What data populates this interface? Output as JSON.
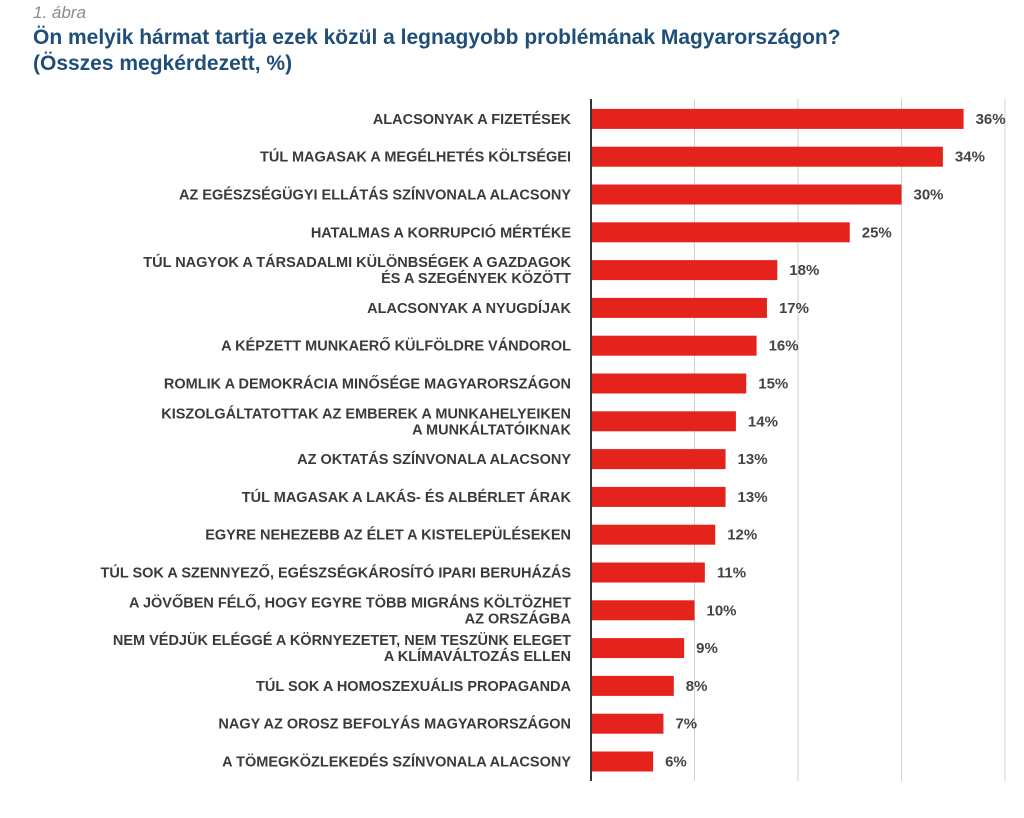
{
  "figure_label": "1. ábra",
  "title_line1": "Ön melyik hármat tartja ezek közül a legnagyobb problémának Magyarországon?",
  "title_line2": "(Összes megkérdezett, %)",
  "colors": {
    "bar": "#e3231c",
    "title": "#1f4e79",
    "grid": "#d0d0d0",
    "axis": "#333333"
  },
  "chart_data": {
    "type": "bar",
    "orientation": "horizontal",
    "title": "Ön melyik hármat tartja ezek közül a legnagyobb problémának Magyarországon? (Összes megkérdezett, %)",
    "categories": [
      [
        "ALACSONYAK A FIZETÉSEK"
      ],
      [
        "TÚL MAGASAK A MEGÉLHETÉS KÖLTSÉGEI"
      ],
      [
        "AZ EGÉSZSÉGÜGYI ELLÁTÁS SZÍNVONALA ALACSONY"
      ],
      [
        "HATALMAS A KORRUPCIÓ MÉRTÉKE"
      ],
      [
        "TÚL NAGYOK A TÁRSADALMI KÜLÖNBSÉGEK A GAZDAGOK",
        "ÉS A SZEGÉNYEK KÖZÖTT"
      ],
      [
        "ALACSONYAK A NYUGDÍJAK"
      ],
      [
        "A KÉPZETT MUNKAERŐ KÜLFÖLDRE VÁNDOROL"
      ],
      [
        "ROMLIK A DEMOKRÁCIA MINŐSÉGE MAGYARORSZÁGON"
      ],
      [
        "KISZOLGÁLTATOTTAK AZ EMBEREK A MUNKAHELYEIKEN",
        "A MUNKÁLTATÓIKNAK"
      ],
      [
        "AZ OKTATÁS SZÍNVONALA ALACSONY"
      ],
      [
        "TÚL MAGASAK A LAKÁS- ÉS ALBÉRLET ÁRAK"
      ],
      [
        "EGYRE NEHEZEBB AZ ÉLET A KISTELEPÜLÉSEKEN"
      ],
      [
        "TÚL SOK A SZENNYEZŐ, EGÉSZSÉGKÁROSÍTÓ IPARI BERUHÁZÁS"
      ],
      [
        "A JÖVŐBEN FÉLŐ, HOGY EGYRE TÖBB MIGRÁNS KÖLTÖZHET",
        "AZ ORSZÁGBA"
      ],
      [
        "NEM VÉDJÜK ELÉGGÉ A KÖRNYEZETET, NEM TESZÜNK ELEGET",
        "A KLÍMAVÁLTOZÁS ELLEN"
      ],
      [
        "TÚL SOK A HOMOSZEXUÁLIS PROPAGANDA"
      ],
      [
        "NAGY AZ OROSZ BEFOLYÁS MAGYARORSZÁGON"
      ],
      [
        "A TÖMEGKÖZLEKEDÉS SZÍNVONALA ALACSONY"
      ]
    ],
    "values": [
      36,
      34,
      30,
      25,
      18,
      17,
      16,
      15,
      14,
      13,
      13,
      12,
      11,
      10,
      9,
      8,
      7,
      6
    ],
    "value_labels": [
      "36%",
      "34%",
      "30%",
      "25%",
      "18%",
      "17%",
      "16%",
      "15%",
      "14%",
      "13%",
      "13%",
      "12%",
      "11%",
      "10%",
      "9%",
      "8%",
      "7%",
      "6%"
    ],
    "xlim": [
      0,
      40
    ],
    "grid": true,
    "gridlines_at": [
      10,
      20,
      30,
      40
    ],
    "legend": "none"
  }
}
